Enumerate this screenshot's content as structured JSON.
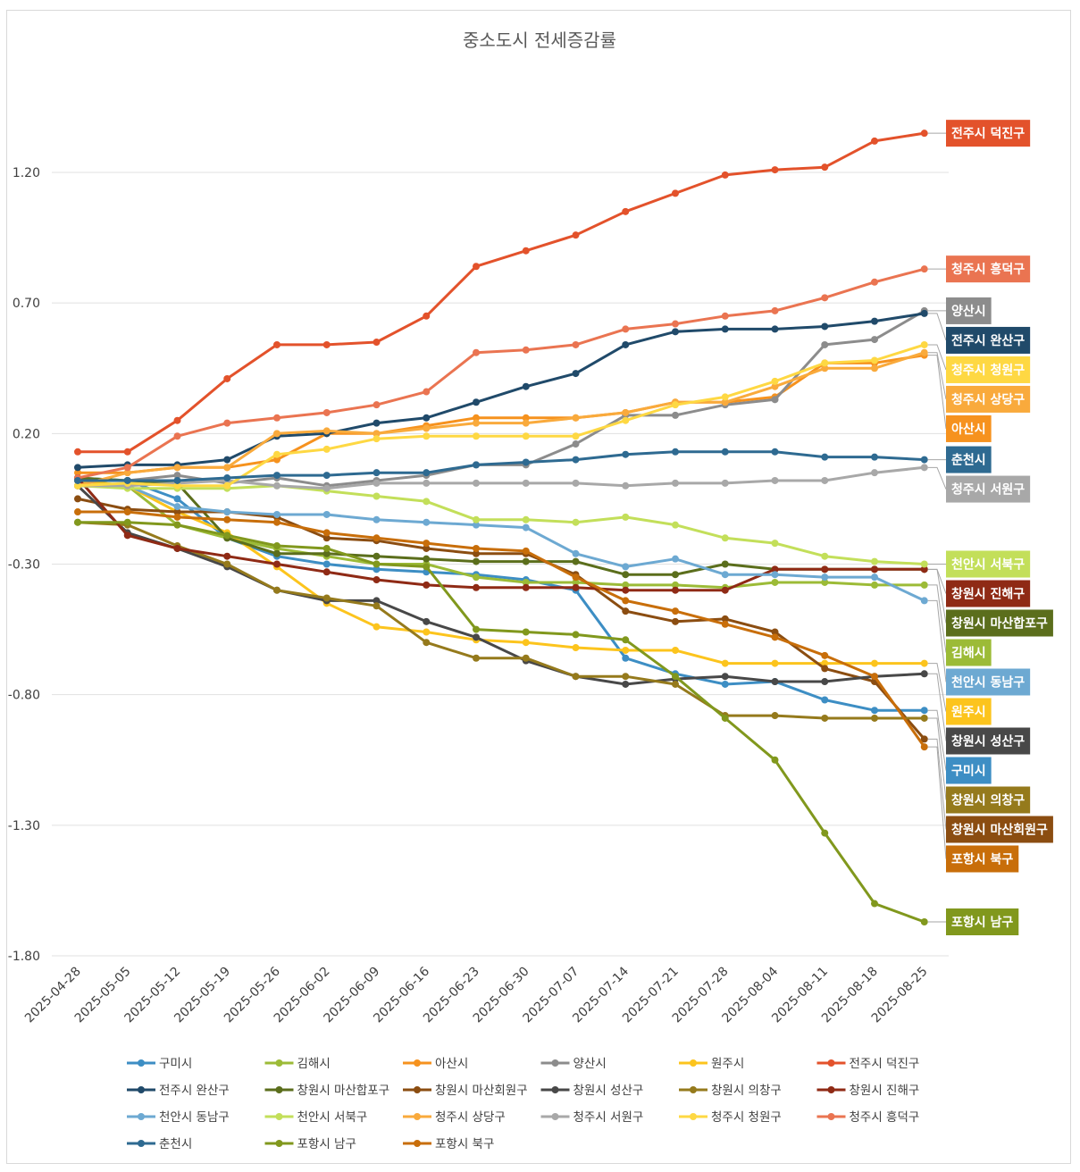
{
  "chart_data": {
    "type": "line",
    "title": "중소도시 전세증감률",
    "xlabel": "",
    "ylabel": "",
    "ylim": [
      -1.8,
      1.7
    ],
    "yticks": [
      1.2,
      0.7,
      0.2,
      -0.3,
      -0.8,
      -1.3,
      -1.8
    ],
    "ytick_labels": [
      "1.20",
      "0.70",
      "0.20",
      "-0.30",
      "-0.80",
      "-1.30",
      "-1.80"
    ],
    "grid": true,
    "legend_position": "bottom",
    "x": [
      "2025-04-28",
      "2025-05-05",
      "2025-05-12",
      "2025-05-19",
      "2025-05-26",
      "2025-06-02",
      "2025-06-09",
      "2025-06-16",
      "2025-06-23",
      "2025-06-30",
      "2025-07-07",
      "2025-07-14",
      "2025-07-21",
      "2025-07-28",
      "2025-08-04",
      "2025-08-11",
      "2025-08-18",
      "2025-08-25"
    ],
    "series": [
      {
        "name": "구미시",
        "color": "#3d8ec4",
        "values": [
          0.03,
          0.02,
          -0.05,
          -0.2,
          -0.27,
          -0.3,
          -0.32,
          -0.33,
          -0.34,
          -0.36,
          -0.4,
          -0.66,
          -0.72,
          -0.76,
          -0.75,
          -0.82,
          -0.86,
          -0.86
        ]
      },
      {
        "name": "김해시",
        "color": "#9cbb37",
        "values": [
          0.02,
          0.0,
          -0.15,
          -0.2,
          -0.24,
          -0.27,
          -0.3,
          -0.3,
          -0.35,
          -0.37,
          -0.37,
          -0.38,
          -0.38,
          -0.39,
          -0.37,
          -0.37,
          -0.38,
          -0.38
        ]
      },
      {
        "name": "아산시",
        "color": "#f6921e",
        "values": [
          0.05,
          0.05,
          0.07,
          0.07,
          0.1,
          0.2,
          0.2,
          0.23,
          0.26,
          0.26,
          0.26,
          0.28,
          0.32,
          0.32,
          0.34,
          0.47,
          0.47,
          0.5
        ]
      },
      {
        "name": "양산시",
        "color": "#8c8c8c",
        "values": [
          0.02,
          0.02,
          0.04,
          0.01,
          0.03,
          0.0,
          0.02,
          0.04,
          0.08,
          0.08,
          0.16,
          0.27,
          0.27,
          0.31,
          0.33,
          0.54,
          0.56,
          0.67
        ]
      },
      {
        "name": "원주시",
        "color": "#fcc41d",
        "values": [
          0.02,
          0.0,
          -0.1,
          -0.18,
          -0.31,
          -0.45,
          -0.54,
          -0.56,
          -0.59,
          -0.6,
          -0.62,
          -0.63,
          -0.63,
          -0.68,
          -0.68,
          -0.68,
          -0.68,
          -0.68
        ]
      },
      {
        "name": "전주시 덕진구",
        "color": "#e3522b",
        "values": [
          0.13,
          0.13,
          0.25,
          0.41,
          0.54,
          0.54,
          0.55,
          0.65,
          0.84,
          0.9,
          0.96,
          1.05,
          1.12,
          1.19,
          1.21,
          1.22,
          1.32,
          1.35
        ]
      },
      {
        "name": "전주시 완산구",
        "color": "#204a6a",
        "values": [
          0.07,
          0.08,
          0.08,
          0.1,
          0.19,
          0.2,
          0.24,
          0.26,
          0.32,
          0.38,
          0.43,
          0.54,
          0.59,
          0.6,
          0.6,
          0.61,
          0.63,
          0.66
        ]
      },
      {
        "name": "창원시 마산합포구",
        "color": "#5b6e1c",
        "values": [
          0.03,
          0.02,
          0.01,
          -0.2,
          -0.26,
          -0.26,
          -0.27,
          -0.28,
          -0.29,
          -0.29,
          -0.29,
          -0.34,
          -0.34,
          -0.3,
          -0.32,
          -0.32,
          -0.32,
          -0.32
        ]
      },
      {
        "name": "창원시 마산회원구",
        "color": "#8b4d11",
        "values": [
          -0.05,
          -0.09,
          -0.1,
          -0.1,
          -0.12,
          -0.2,
          -0.21,
          -0.24,
          -0.26,
          -0.26,
          -0.34,
          -0.48,
          -0.52,
          -0.51,
          -0.56,
          -0.7,
          -0.75,
          -0.97
        ]
      },
      {
        "name": "창원시 성산구",
        "color": "#484848",
        "values": [
          0.0,
          -0.18,
          -0.24,
          -0.31,
          -0.4,
          -0.44,
          -0.44,
          -0.52,
          -0.58,
          -0.67,
          -0.73,
          -0.76,
          -0.74,
          -0.73,
          -0.75,
          -0.75,
          -0.73,
          -0.72
        ]
      },
      {
        "name": "창원시 의창구",
        "color": "#957a1c",
        "values": [
          -0.14,
          -0.15,
          -0.23,
          -0.3,
          -0.4,
          -0.43,
          -0.46,
          -0.6,
          -0.66,
          -0.66,
          -0.73,
          -0.73,
          -0.76,
          -0.88,
          -0.88,
          -0.89,
          -0.89,
          -0.89
        ]
      },
      {
        "name": "창원시 진해구",
        "color": "#8f2a15",
        "values": [
          0.03,
          -0.19,
          -0.24,
          -0.27,
          -0.3,
          -0.33,
          -0.36,
          -0.38,
          -0.39,
          -0.39,
          -0.39,
          -0.4,
          -0.4,
          -0.4,
          -0.32,
          -0.32,
          -0.32,
          -0.32
        ]
      },
      {
        "name": "천안시 동남구",
        "color": "#6da9d2",
        "values": [
          0.0,
          0.0,
          -0.08,
          -0.1,
          -0.11,
          -0.11,
          -0.13,
          -0.14,
          -0.15,
          -0.16,
          -0.26,
          -0.31,
          -0.28,
          -0.34,
          -0.34,
          -0.35,
          -0.35,
          -0.44
        ]
      },
      {
        "name": "천안시 서북구",
        "color": "#c3df5a",
        "values": [
          0.0,
          -0.01,
          -0.01,
          -0.01,
          0.0,
          -0.02,
          -0.04,
          -0.06,
          -0.13,
          -0.13,
          -0.14,
          -0.12,
          -0.15,
          -0.2,
          -0.22,
          -0.27,
          -0.29,
          -0.3
        ]
      },
      {
        "name": "청주시 상당구",
        "color": "#f9aa3c",
        "values": [
          0.0,
          0.05,
          0.07,
          0.07,
          0.2,
          0.21,
          0.2,
          0.22,
          0.24,
          0.24,
          0.26,
          0.28,
          0.32,
          0.32,
          0.38,
          0.45,
          0.45,
          0.51
        ]
      },
      {
        "name": "청주시 서원구",
        "color": "#a8a8a8",
        "values": [
          0.0,
          0.0,
          0.01,
          0.02,
          0.0,
          -0.01,
          0.01,
          0.01,
          0.01,
          0.01,
          0.01,
          0.0,
          0.01,
          0.01,
          0.02,
          0.02,
          0.05,
          0.07
        ]
      },
      {
        "name": "청주시 청원구",
        "color": "#fed843",
        "values": [
          0.0,
          0.01,
          0.0,
          0.0,
          0.12,
          0.14,
          0.18,
          0.19,
          0.19,
          0.19,
          0.19,
          0.25,
          0.31,
          0.34,
          0.4,
          0.47,
          0.48,
          0.54
        ]
      },
      {
        "name": "청주시 흥덕구",
        "color": "#ea7451",
        "values": [
          0.03,
          0.07,
          0.19,
          0.24,
          0.26,
          0.28,
          0.31,
          0.36,
          0.51,
          0.52,
          0.54,
          0.6,
          0.62,
          0.65,
          0.67,
          0.72,
          0.78,
          0.83
        ]
      },
      {
        "name": "춘천시",
        "color": "#2e6a91",
        "values": [
          0.02,
          0.02,
          0.02,
          0.03,
          0.04,
          0.04,
          0.05,
          0.05,
          0.08,
          0.09,
          0.1,
          0.12,
          0.13,
          0.13,
          0.13,
          0.11,
          0.11,
          0.1
        ]
      },
      {
        "name": "포항시 남구",
        "color": "#81981d",
        "values": [
          -0.14,
          -0.14,
          -0.15,
          -0.19,
          -0.23,
          -0.24,
          -0.3,
          -0.31,
          -0.55,
          -0.56,
          -0.57,
          -0.59,
          -0.73,
          -0.89,
          -1.05,
          -1.33,
          -1.6,
          -1.67
        ]
      },
      {
        "name": "포항시 북구",
        "color": "#c86e0a",
        "values": [
          -0.1,
          -0.1,
          -0.12,
          -0.13,
          -0.14,
          -0.18,
          -0.2,
          -0.22,
          -0.24,
          -0.25,
          -0.35,
          -0.44,
          -0.48,
          -0.53,
          -0.58,
          -0.65,
          -0.73,
          -1.0
        ]
      }
    ],
    "end_labels": [
      {
        "series": "전주시 덕진구",
        "text": "전주시 덕진구",
        "color": "#e3522b"
      },
      {
        "series": "청주시 흥덕구",
        "text": "청주시 흥덕구",
        "color": "#ea7451"
      },
      {
        "series": "양산시",
        "text": "양산시",
        "color": "#8c8c8c"
      },
      {
        "series": "전주시 완산구",
        "text": "전주시 완산구",
        "color": "#204a6a"
      },
      {
        "series": "청주시 청원구",
        "text": "청주시 청원구",
        "color": "#fed843"
      },
      {
        "series": "청주시 상당구",
        "text": "청주시 상당구",
        "color": "#f9aa3c"
      },
      {
        "series": "춘천시",
        "text": "춘천시",
        "color": "#2e6a91"
      },
      {
        "series": "청주시 서원구",
        "text": "청주시 서원구",
        "color": "#a8a8a8"
      },
      {
        "series": "천안시 서북구",
        "text": "천안시 서북구",
        "color": "#c3df5a"
      },
      {
        "series": "창원시 진해구",
        "text": "창원시 진해구",
        "color": "#8f2a15"
      },
      {
        "series": "창원시 마산합포구",
        "text": "창원시 마산합포구",
        "color": "#5b6e1c"
      },
      {
        "series": "천안시 동남구",
        "text": "천안시 동남구",
        "color": "#6da9d2"
      },
      {
        "series": "아산시",
        "text": "아산시",
        "color": "#f6921e"
      },
      {
        "series": "김해시",
        "text": "김해시",
        "color": "#9cbb37"
      },
      {
        "series": "창원시 마산회원구",
        "text": "창원시 마산회원구",
        "color": "#8b4d11"
      },
      {
        "series": "원주시",
        "text": "원주시",
        "color": "#fcc41d"
      },
      {
        "series": "창원시 성산구",
        "text": "창원시 성산구",
        "color": "#484848"
      },
      {
        "series": "구미시",
        "text": "구미시",
        "color": "#3d8ec4"
      },
      {
        "series": "창원시 의창구",
        "text": "창원시 의창구",
        "color": "#957a1c"
      },
      {
        "series": "포항시 북구",
        "text": "포항시 북구",
        "color": "#c86e0a"
      },
      {
        "series": "포항시 남구",
        "text": "포항시 남구",
        "color": "#81981d"
      }
    ]
  }
}
